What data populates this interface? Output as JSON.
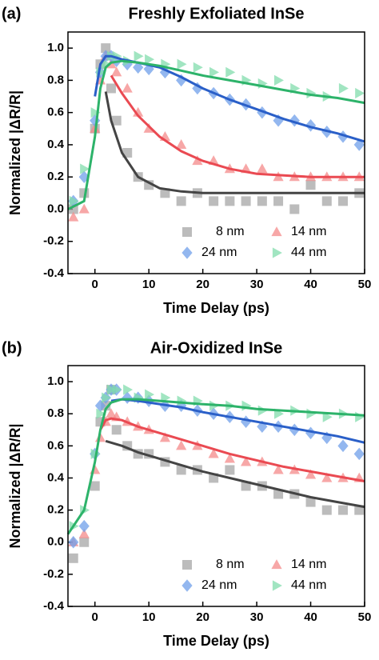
{
  "chart_data": [
    {
      "type": "scatter",
      "panel_label": "(a)",
      "title": "Freshly Exfoliated InSe",
      "x_label": "Time Delay (ps)",
      "y_label": "Normalized |ΔR/R|",
      "xlim": [
        -5,
        50
      ],
      "ylim": [
        -0.4,
        1.1
      ],
      "xticks": [
        0,
        10,
        20,
        30,
        40,
        50
      ],
      "yticks": [
        -0.4,
        -0.2,
        {
          "value": 0,
          "label": "0.0"
        },
        0.2,
        0.4,
        0.6,
        0.8,
        {
          "value": 1,
          "label": "1.0"
        }
      ],
      "x": [
        -4,
        -2,
        0,
        1,
        2,
        3,
        4,
        6,
        8,
        10,
        13,
        16,
        19,
        22,
        25,
        28,
        31,
        34,
        37,
        40,
        43,
        46,
        49
      ],
      "series": [
        {
          "name": "8 nm",
          "color": "#a6a6a6",
          "marker": "square",
          "values": [
            0.0,
            0.1,
            0.5,
            0.9,
            1.0,
            0.75,
            0.55,
            0.35,
            0.2,
            0.15,
            0.1,
            0.05,
            0.1,
            0.05,
            0.05,
            0.05,
            0.05,
            0.05,
            0.0,
            0.15,
            0.05,
            0.05,
            0.1
          ]
        },
        {
          "name": "14 nm",
          "color": "#f48a8a",
          "marker": "triangle",
          "values": [
            -0.05,
            0.0,
            0.5,
            0.8,
            0.95,
            0.9,
            0.85,
            0.75,
            0.6,
            0.5,
            0.45,
            0.4,
            0.3,
            0.3,
            0.25,
            0.25,
            0.25,
            0.2,
            0.2,
            0.2,
            0.2,
            0.2,
            0.2
          ]
        },
        {
          "name": "24 nm",
          "color": "#6f9fea",
          "marker": "diamond",
          "values": [
            0.05,
            0.2,
            0.55,
            0.85,
            0.95,
            0.95,
            0.92,
            0.9,
            0.88,
            0.87,
            0.85,
            0.8,
            0.75,
            0.72,
            0.68,
            0.65,
            0.6,
            0.55,
            0.55,
            0.52,
            0.48,
            0.45,
            0.4
          ]
        },
        {
          "name": "44 nm",
          "color": "#82dcac",
          "marker": "right-triangle",
          "values": [
            0.05,
            0.25,
            0.6,
            0.85,
            0.9,
            0.95,
            0.95,
            0.92,
            0.95,
            0.93,
            0.9,
            0.9,
            0.88,
            0.85,
            0.85,
            0.8,
            0.78,
            0.8,
            0.75,
            0.72,
            0.7,
            0.75,
            0.72
          ]
        }
      ],
      "fits": [
        {
          "color": "#444444",
          "x": [
            -5,
            -2,
            0,
            1,
            2,
            3,
            5,
            8,
            12,
            16,
            20,
            25,
            30,
            35,
            40,
            45,
            50
          ],
          "values": [
            null,
            null,
            null,
            null,
            0.73,
            0.55,
            0.35,
            0.2,
            0.13,
            0.11,
            0.1,
            0.1,
            0.1,
            0.1,
            0.1,
            0.1,
            0.1
          ]
        },
        {
          "color": "#ea4a52",
          "x": [
            -5,
            -2,
            0,
            1,
            2,
            3,
            5,
            8,
            12,
            16,
            20,
            25,
            30,
            35,
            40,
            45,
            50
          ],
          "values": [
            null,
            null,
            null,
            null,
            null,
            0.83,
            0.72,
            0.58,
            0.45,
            0.36,
            0.3,
            0.25,
            0.22,
            0.21,
            0.2,
            0.2,
            0.2
          ]
        },
        {
          "color": "#2a5fc8",
          "x": [
            -5,
            -2,
            0,
            1,
            2,
            3,
            5,
            8,
            12,
            16,
            20,
            25,
            30,
            35,
            40,
            45,
            50
          ],
          "values": [
            null,
            null,
            0.7,
            0.9,
            0.95,
            0.95,
            0.93,
            0.91,
            0.88,
            0.82,
            0.75,
            0.68,
            0.62,
            0.56,
            0.51,
            0.47,
            0.42
          ]
        },
        {
          "color": "#2db36a",
          "x": [
            -5,
            -2,
            0,
            1,
            2,
            3,
            5,
            8,
            12,
            16,
            20,
            25,
            30,
            35,
            40,
            45,
            50
          ],
          "values": [
            0.0,
            0.05,
            0.45,
            0.75,
            0.88,
            0.91,
            0.92,
            0.91,
            0.89,
            0.86,
            0.83,
            0.8,
            0.77,
            0.74,
            0.71,
            0.69,
            0.66
          ]
        }
      ]
    },
    {
      "type": "scatter",
      "panel_label": "(b)",
      "title": "Air-Oxidized InSe",
      "x_label": "Time Delay (ps)",
      "y_label": "Normalized |ΔR/R|",
      "xlim": [
        -5,
        50
      ],
      "ylim": [
        -0.4,
        1.1
      ],
      "xticks": [
        0,
        10,
        20,
        30,
        40,
        50
      ],
      "yticks": [
        -0.4,
        -0.2,
        {
          "value": 0,
          "label": "0.0"
        },
        0.2,
        0.4,
        0.6,
        0.8,
        {
          "value": 1,
          "label": "1.0"
        }
      ],
      "x": [
        -4,
        -2,
        0,
        1,
        2,
        3,
        4,
        6,
        8,
        10,
        13,
        16,
        19,
        22,
        25,
        28,
        31,
        34,
        37,
        40,
        43,
        46,
        49
      ],
      "series": [
        {
          "name": "8 nm",
          "color": "#a6a6a6",
          "marker": "square",
          "values": [
            -0.1,
            0.0,
            0.35,
            0.75,
            0.85,
            0.95,
            0.7,
            0.6,
            0.55,
            0.55,
            0.5,
            0.45,
            0.45,
            0.4,
            0.45,
            0.35,
            0.35,
            0.3,
            0.3,
            0.25,
            0.2,
            0.2,
            0.2
          ]
        },
        {
          "name": "14 nm",
          "color": "#f48a8a",
          "marker": "triangle",
          "values": [
            0.0,
            0.05,
            0.45,
            0.65,
            0.75,
            0.8,
            0.78,
            0.75,
            0.72,
            0.7,
            0.65,
            0.6,
            0.6,
            0.55,
            0.52,
            0.5,
            0.5,
            0.45,
            0.45,
            0.42,
            0.4,
            0.4,
            0.4
          ]
        },
        {
          "name": "24 nm",
          "color": "#6f9fea",
          "marker": "diamond",
          "values": [
            0.0,
            0.1,
            0.55,
            0.85,
            0.9,
            0.95,
            0.95,
            0.9,
            0.9,
            0.88,
            0.85,
            0.85,
            0.82,
            0.8,
            0.78,
            0.75,
            0.72,
            0.72,
            0.7,
            0.68,
            0.65,
            0.6,
            0.55
          ]
        },
        {
          "name": "44 nm",
          "color": "#82dcac",
          "marker": "right-triangle",
          "values": [
            0.1,
            0.2,
            0.55,
            0.8,
            0.9,
            0.95,
            0.95,
            0.95,
            0.9,
            0.92,
            0.9,
            0.88,
            0.88,
            0.85,
            0.85,
            0.85,
            0.82,
            0.8,
            0.82,
            0.8,
            0.78,
            0.8,
            0.78
          ]
        }
      ],
      "fits": [
        {
          "color": "#444444",
          "x": [
            -5,
            -2,
            0,
            1,
            2,
            3,
            5,
            8,
            12,
            16,
            20,
            25,
            30,
            35,
            40,
            45,
            50
          ],
          "values": [
            null,
            null,
            null,
            null,
            0.63,
            0.62,
            0.6,
            0.56,
            0.52,
            0.48,
            0.44,
            0.4,
            0.36,
            0.32,
            0.28,
            0.25,
            0.22
          ]
        },
        {
          "color": "#ea4a52",
          "x": [
            -5,
            -2,
            0,
            1,
            2,
            3,
            5,
            8,
            12,
            16,
            20,
            25,
            30,
            35,
            40,
            45,
            50
          ],
          "values": [
            null,
            null,
            null,
            0.7,
            0.76,
            0.77,
            0.76,
            0.72,
            0.68,
            0.64,
            0.6,
            0.55,
            0.51,
            0.47,
            0.44,
            0.41,
            0.38
          ]
        },
        {
          "color": "#2a5fc8",
          "x": [
            -5,
            -2,
            0,
            1,
            2,
            3,
            5,
            8,
            12,
            16,
            20,
            25,
            30,
            35,
            40,
            45,
            50
          ],
          "values": [
            null,
            null,
            null,
            null,
            null,
            0.88,
            0.89,
            0.88,
            0.86,
            0.84,
            0.81,
            0.78,
            0.75,
            0.72,
            0.69,
            0.66,
            0.62
          ]
        },
        {
          "color": "#2db36a",
          "x": [
            -5,
            -2,
            0,
            1,
            2,
            3,
            5,
            8,
            12,
            16,
            20,
            25,
            30,
            35,
            40,
            45,
            50
          ],
          "values": [
            0.05,
            0.2,
            0.5,
            0.7,
            0.83,
            0.87,
            0.89,
            0.89,
            0.88,
            0.87,
            0.86,
            0.85,
            0.83,
            0.82,
            0.81,
            0.8,
            0.79
          ]
        }
      ]
    }
  ]
}
